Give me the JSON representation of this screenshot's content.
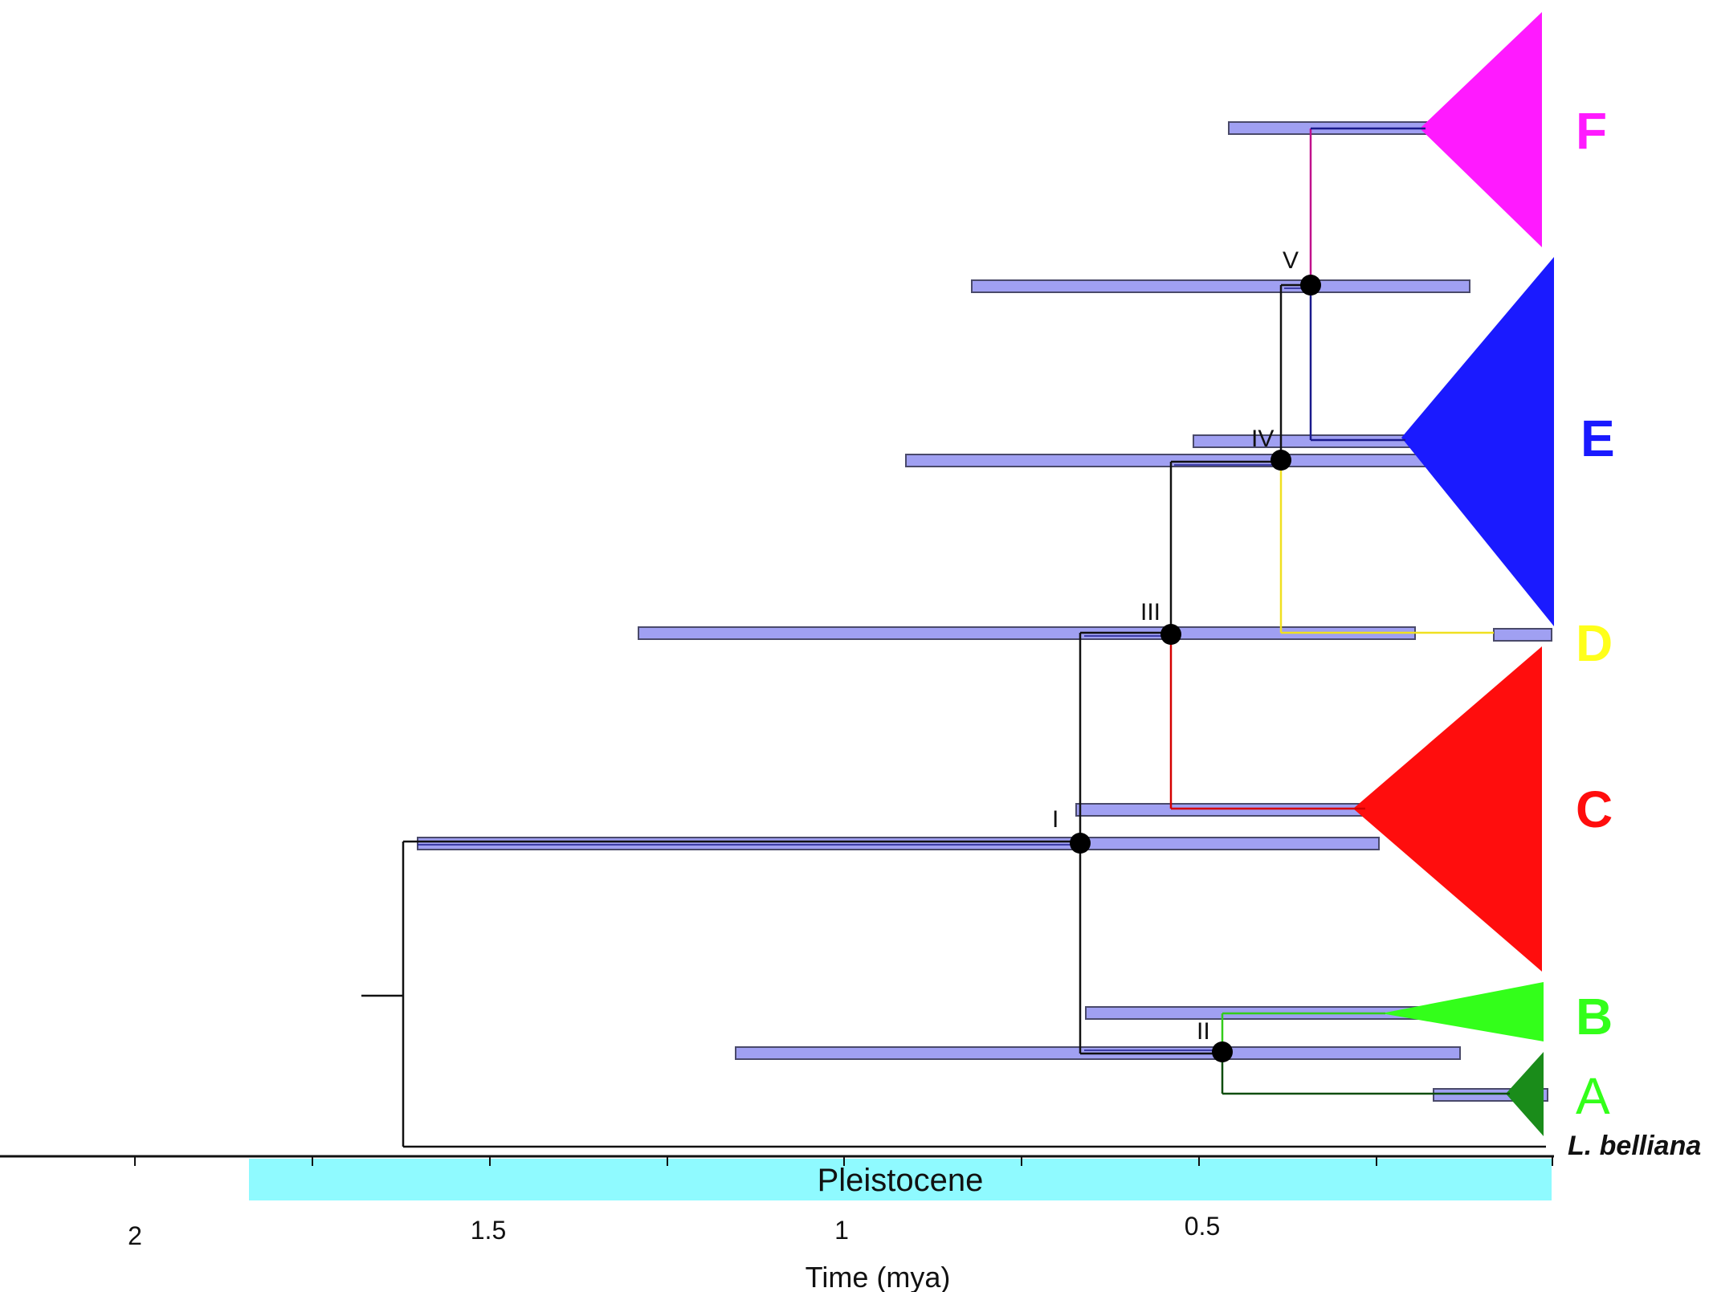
{
  "figure": {
    "axis_title": "Time (mya)",
    "ticks": [
      "2",
      "1.5",
      "1",
      "0.5"
    ],
    "epoch": {
      "label": "Pleistocene",
      "color": "#8ffaff"
    },
    "hpd_bar_color": "#8f8ff0"
  },
  "nodes": [
    {
      "id": "I",
      "label": "I"
    },
    {
      "id": "II",
      "label": "II"
    },
    {
      "id": "III",
      "label": "III"
    },
    {
      "id": "IV",
      "label": "IV"
    },
    {
      "id": "V",
      "label": "V"
    }
  ],
  "clades": [
    {
      "id": "F",
      "label": "F",
      "color": "#ff1aff"
    },
    {
      "id": "E",
      "label": "E",
      "color": "#1a1aff"
    },
    {
      "id": "D",
      "label": "D",
      "color": "#ffff1a"
    },
    {
      "id": "C",
      "label": "C",
      "color": "#ff0d0d"
    },
    {
      "id": "B",
      "label": "B",
      "color": "#33ff1a"
    },
    {
      "id": "A",
      "label": "A",
      "color": "#33ff1a",
      "triangle_color": "#1a8c1a"
    }
  ],
  "outgroup": {
    "label": "L. belliana"
  }
}
